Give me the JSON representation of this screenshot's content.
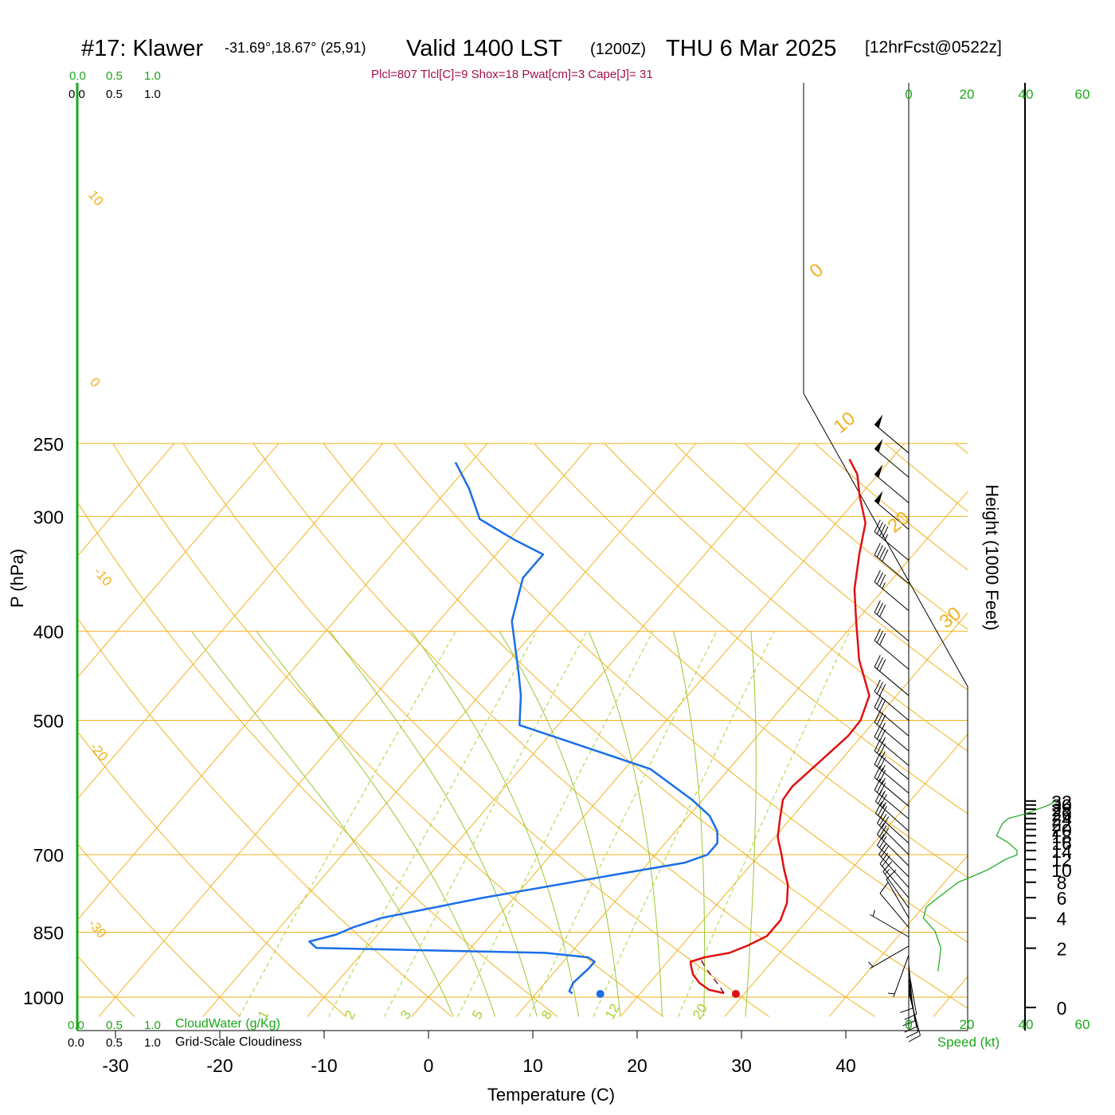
{
  "title": {
    "station": "#17: Klawer",
    "coords": "-31.69°,18.67° (25,91)",
    "valid": "Valid 1400 LST",
    "zulu": "(1200Z)",
    "date": "THU 6 Mar 2025",
    "forecast": "[12hrFcst@0522z]"
  },
  "params_line": "Plcl=807 Tlcl[C]=9 Shox=18 Pwat[cm]=3 Cape[J]= 31",
  "colors": {
    "temperature": "#e01010",
    "dewpoint": "#1a6ee8",
    "isotherm_adiabat": "#f2b21f",
    "moist_adiabat": "#98c830",
    "mixing_ratio": "#a8d030",
    "green_axis": "#1aa81a",
    "parcel": "#7a1040"
  },
  "scale_top": {
    "green": [
      "0.0",
      "0.5",
      "1.0"
    ],
    "black": [
      "0.0",
      "0.5",
      "1.0"
    ]
  },
  "scale_bottom": {
    "green": [
      "0.0",
      "0.5",
      "1.0"
    ],
    "green_label": "CloudWater (g/Kg)",
    "black": [
      "0.0",
      "0.5",
      "1.0"
    ],
    "black_label": "Grid-Scale Cloudiness"
  },
  "speed_axis": {
    "ticks": [
      "0",
      "20",
      "40",
      "60"
    ],
    "label": "Speed (kt)"
  },
  "chart_data": {
    "type": "line",
    "subtype": "skew-T log-P sounding",
    "xlabel": "Temperature (C)",
    "ylabel": "P (hPa)",
    "y2label": "Height (1000 Feet)",
    "x_ticks": [
      "-30",
      "-20",
      "-10",
      "0",
      "10",
      "20",
      "30",
      "40"
    ],
    "p_ticks": [
      "250",
      "300",
      "400",
      "500",
      "700",
      "850",
      "1000"
    ],
    "height_ticks": [
      "0",
      "2",
      "4",
      "6",
      "8",
      "10",
      "12",
      "14",
      "16",
      "18",
      "20",
      "22",
      "24",
      "26",
      "28",
      "30",
      "32"
    ],
    "adiabat_labels": [
      "10",
      "0",
      "-10",
      "-20",
      "-30"
    ],
    "isotherm_labels_right": [
      "0",
      "10",
      "20",
      "30"
    ],
    "mixing_ratio_labels": [
      "1",
      "2",
      "3",
      "5",
      "8",
      "12",
      "20"
    ],
    "series": [
      {
        "name": "Temperature",
        "points": [
          [
            28.0,
            990
          ],
          [
            26.3,
            982
          ],
          [
            24.8,
            965
          ],
          [
            23.5,
            945
          ],
          [
            22.6,
            925
          ],
          [
            22.2,
            915
          ],
          [
            23.2,
            905
          ],
          [
            25.2,
            895
          ],
          [
            26.4,
            878
          ],
          [
            27.4,
            858
          ],
          [
            27.4,
            825
          ],
          [
            26.6,
            790
          ],
          [
            25.2,
            755
          ],
          [
            23.6,
            727
          ],
          [
            22.1,
            700
          ],
          [
            20.3,
            670
          ],
          [
            19.0,
            640
          ],
          [
            17.7,
            610
          ],
          [
            17.5,
            590
          ],
          [
            18.0,
            560
          ],
          [
            18.7,
            520
          ],
          [
            18.6,
            500
          ],
          [
            17.4,
            470
          ],
          [
            13.5,
            430
          ],
          [
            10.0,
            390
          ],
          [
            7.2,
            360
          ],
          [
            4.8,
            330
          ],
          [
            2.8,
            305
          ],
          [
            0.0,
            285
          ],
          [
            -2.0,
            270
          ],
          [
            -4.0,
            260
          ]
        ]
      },
      {
        "name": "Dewpoint",
        "points": [
          [
            13.5,
            991
          ],
          [
            13.0,
            985
          ],
          [
            12.7,
            965
          ],
          [
            13.0,
            930
          ],
          [
            13.0,
            915
          ],
          [
            12.0,
            905
          ],
          [
            7.5,
            895
          ],
          [
            -2.7,
            890
          ],
          [
            -14.8,
            884
          ],
          [
            -16.0,
            870
          ],
          [
            -14.0,
            855
          ],
          [
            -13.0,
            840
          ],
          [
            -11.0,
            820
          ],
          [
            -3.0,
            780
          ],
          [
            7.5,
            737
          ],
          [
            13.5,
            714
          ],
          [
            15.0,
            700
          ],
          [
            15.0,
            680
          ],
          [
            14.0,
            660
          ],
          [
            12.0,
            635
          ],
          [
            9.0,
            610
          ],
          [
            2.5,
            565
          ],
          [
            -13.7,
            506
          ],
          [
            -16.0,
            470
          ],
          [
            -18.0,
            445
          ],
          [
            -23.0,
            390
          ],
          [
            -25.5,
            350
          ],
          [
            -25.5,
            330
          ],
          [
            -29.5,
            318
          ],
          [
            -34.5,
            302
          ],
          [
            -38.0,
            280
          ],
          [
            -41.5,
            262
          ]
        ]
      },
      {
        "name": "Parcel",
        "points": [
          [
            28.0,
            990
          ],
          [
            26.8,
            970
          ],
          [
            25.5,
            950
          ],
          [
            24.2,
            930
          ],
          [
            23.0,
            910
          ]
        ]
      }
    ],
    "surface_points": {
      "temperature_c": 29.2,
      "dewpoint_c": 16.2,
      "pressure_hpa": 992
    },
    "wind_speed_profile_kt": [
      [
        1.0,
        10
      ],
      [
        2.0,
        11
      ],
      [
        3.0,
        9
      ],
      [
        4.0,
        5
      ],
      [
        5.0,
        6
      ],
      [
        6.0,
        10
      ],
      [
        8.0,
        17
      ],
      [
        10.0,
        27
      ],
      [
        12.0,
        33
      ],
      [
        13.0,
        37
      ],
      [
        14.0,
        37
      ],
      [
        16.0,
        34
      ],
      [
        18.0,
        30
      ],
      [
        20.0,
        31
      ],
      [
        22.0,
        32
      ],
      [
        24.0,
        34
      ],
      [
        26.0,
        40
      ],
      [
        28.0,
        44
      ],
      [
        30.0,
        48
      ],
      [
        32.0,
        50
      ],
      [
        33.0,
        51
      ]
    ],
    "wind_barbs": [
      {
        "p": 988,
        "dir": 165,
        "spd": 10
      },
      {
        "p": 978,
        "dir": 168,
        "spd": 10
      },
      {
        "p": 965,
        "dir": 170,
        "spd": 11
      },
      {
        "p": 950,
        "dir": 172,
        "spd": 12
      },
      {
        "p": 935,
        "dir": 170,
        "spd": 10
      },
      {
        "p": 920,
        "dir": 175,
        "spd": 8
      },
      {
        "p": 900,
        "dir": 200,
        "spd": 5
      },
      {
        "p": 880,
        "dir": 240,
        "spd": 5
      },
      {
        "p": 860,
        "dir": 300,
        "spd": 6
      },
      {
        "p": 840,
        "dir": 320,
        "spd": 8
      },
      {
        "p": 820,
        "dir": 330,
        "spd": 12
      },
      {
        "p": 800,
        "dir": 325,
        "spd": 15
      },
      {
        "p": 780,
        "dir": 320,
        "spd": 18
      },
      {
        "p": 760,
        "dir": 318,
        "spd": 22
      },
      {
        "p": 740,
        "dir": 315,
        "spd": 25
      },
      {
        "p": 720,
        "dir": 315,
        "spd": 28
      },
      {
        "p": 700,
        "dir": 315,
        "spd": 30
      },
      {
        "p": 680,
        "dir": 312,
        "spd": 32
      },
      {
        "p": 660,
        "dir": 312,
        "spd": 33
      },
      {
        "p": 640,
        "dir": 310,
        "spd": 35
      },
      {
        "p": 620,
        "dir": 310,
        "spd": 35
      },
      {
        "p": 600,
        "dir": 310,
        "spd": 35
      },
      {
        "p": 580,
        "dir": 310,
        "spd": 35
      },
      {
        "p": 560,
        "dir": 310,
        "spd": 35
      },
      {
        "p": 540,
        "dir": 310,
        "spd": 35
      },
      {
        "p": 520,
        "dir": 310,
        "spd": 30
      },
      {
        "p": 500,
        "dir": 310,
        "spd": 30
      },
      {
        "p": 470,
        "dir": 310,
        "spd": 30
      },
      {
        "p": 440,
        "dir": 310,
        "spd": 30
      },
      {
        "p": 410,
        "dir": 310,
        "spd": 30
      },
      {
        "p": 380,
        "dir": 310,
        "spd": 35
      },
      {
        "p": 355,
        "dir": 310,
        "spd": 40
      },
      {
        "p": 335,
        "dir": 310,
        "spd": 45
      },
      {
        "p": 310,
        "dir": 310,
        "spd": 50
      },
      {
        "p": 290,
        "dir": 310,
        "spd": 50
      },
      {
        "p": 272,
        "dir": 310,
        "spd": 50
      },
      {
        "p": 256,
        "dir": 310,
        "spd": 50
      }
    ]
  }
}
